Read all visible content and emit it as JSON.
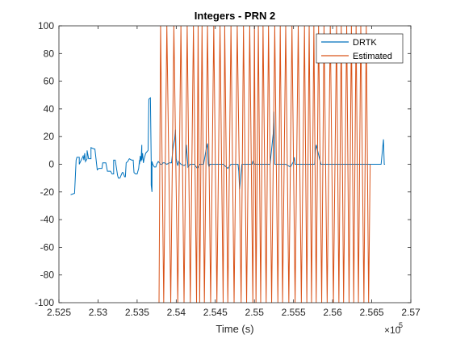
{
  "chart_data": {
    "type": "line",
    "title": "Integers - PRN 2",
    "xlabel": "Time (s)",
    "ylabel": "",
    "x_exponent_label": "×10",
    "x_exponent_power": "5",
    "xlim": [
      2.525,
      2.57
    ],
    "ylim": [
      -100,
      100
    ],
    "x_ticks": [
      2.525,
      2.53,
      2.535,
      2.54,
      2.545,
      2.55,
      2.555,
      2.56,
      2.565,
      2.57
    ],
    "x_tick_labels": [
      "2.525",
      "2.53",
      "2.535",
      "2.54",
      "2.545",
      "2.55",
      "2.555",
      "2.56",
      "2.565",
      "2.57"
    ],
    "y_ticks": [
      -100,
      -80,
      -60,
      -40,
      -20,
      0,
      20,
      40,
      60,
      80,
      100
    ],
    "y_tick_labels": [
      "-100",
      "-80",
      "-60",
      "-40",
      "-20",
      "0",
      "20",
      "40",
      "60",
      "80",
      "100"
    ],
    "grid": false,
    "legend_position": "top-right",
    "series": [
      {
        "name": "DRTK",
        "color": "#0072BD",
        "x": [
          2.5265,
          2.527,
          2.5272,
          2.5273,
          2.5276,
          2.5276,
          2.5281,
          2.5282,
          2.5283,
          2.5284,
          2.5286,
          2.5286,
          2.5288,
          2.5291,
          2.5291,
          2.5295,
          2.5296,
          2.5299,
          2.5301,
          2.5305,
          2.5306,
          2.531,
          2.5312,
          2.5316,
          2.5318,
          2.532,
          2.532,
          2.5322,
          2.5325,
          2.5326,
          2.5328,
          2.5331,
          2.5332,
          2.5334,
          2.5335,
          2.5336,
          2.5338,
          2.534,
          2.5343,
          2.5345,
          2.5346,
          2.5348,
          2.535,
          2.5351,
          2.5352,
          2.5353,
          2.5353,
          2.5354,
          2.5355,
          2.5356,
          2.5356,
          2.5357,
          2.5358,
          2.5359,
          2.5361,
          2.5364,
          2.5365,
          2.5367,
          2.5368,
          2.5368,
          2.5369,
          2.5369,
          2.537,
          2.5372,
          2.5374,
          2.5375,
          2.5377,
          2.538,
          2.5382,
          2.5383,
          2.5385,
          2.5388,
          2.5391,
          2.5394,
          2.5396,
          2.5398,
          2.5399,
          2.54,
          2.5401,
          2.5402,
          2.5403,
          2.5406,
          2.541,
          2.5412,
          2.5413,
          2.5415,
          2.5418,
          2.542,
          2.5423,
          2.5427,
          2.543,
          2.5432,
          2.5435,
          2.5438,
          2.544,
          2.5441,
          2.5442,
          2.5443,
          2.5445,
          2.5448,
          2.545,
          2.5454,
          2.5456,
          2.546,
          2.5466,
          2.547,
          2.5475,
          2.5479,
          2.548,
          2.5481,
          2.5484,
          2.549,
          2.5496,
          2.5497,
          2.5498,
          2.55,
          2.5505,
          2.551,
          2.5516,
          2.552,
          2.5524,
          2.5525,
          2.5526,
          2.5527,
          2.553,
          2.5536,
          2.554,
          2.5546,
          2.555,
          2.5551,
          2.5552,
          2.5558,
          2.5563,
          2.557,
          2.5577,
          2.5578,
          2.5579,
          2.5585,
          2.5592,
          2.56,
          2.5605,
          2.5611,
          2.5618,
          2.5623,
          2.563,
          2.5638,
          2.5646,
          2.5647,
          2.5648,
          2.5649,
          2.5656,
          2.5662,
          2.5665,
          2.5666,
          2.5666,
          2.5667
        ],
        "y": [
          -22,
          -21,
          3,
          5,
          5,
          0,
          6,
          3,
          8,
          2,
          4,
          10,
          4,
          4,
          12,
          11,
          11,
          -4,
          -3,
          -3,
          1,
          1,
          -5,
          -5,
          -7,
          -7,
          3,
          3,
          -8,
          -10,
          -10,
          -6,
          -6,
          -9,
          -9,
          1,
          2,
          4,
          3,
          3,
          -6,
          -7,
          -7,
          -5,
          -3,
          3,
          0,
          6,
          2,
          14,
          3,
          8,
          1,
          4,
          8,
          10,
          47,
          48,
          2,
          -15,
          -20,
          2,
          0,
          -2,
          -2,
          0,
          2,
          0,
          0,
          1,
          1,
          0,
          1,
          1,
          12,
          18,
          25,
          4,
          1,
          -1,
          2,
          0,
          -1,
          0,
          14,
          -2,
          0,
          0,
          0,
          -3,
          0,
          0,
          0,
          10,
          15,
          0,
          -2,
          0,
          0,
          0,
          0,
          0,
          0,
          0,
          -3,
          0,
          0,
          0,
          -5,
          -18,
          0,
          0,
          0,
          0,
          2,
          0,
          0,
          0,
          0,
          0,
          22,
          38,
          0,
          0,
          0,
          0,
          0,
          -2,
          2,
          5,
          0,
          0,
          0,
          0,
          0,
          10,
          14,
          0,
          0,
          0,
          0,
          0,
          0,
          0,
          0,
          0,
          0,
          0,
          0,
          0,
          0,
          0,
          18,
          0,
          0,
          0
        ]
      },
      {
        "name": "Estimated",
        "color": "#D95319",
        "x": [
          2.5378,
          2.538,
          2.5384,
          2.5388,
          2.5393,
          2.5397,
          2.5402,
          2.5406,
          2.541,
          2.5414,
          2.5418,
          2.5422,
          2.5426,
          2.5428,
          2.543,
          2.5433,
          2.5436,
          2.544,
          2.5444,
          2.5448,
          2.5452,
          2.5456,
          2.546,
          2.5462,
          2.5466,
          2.547,
          2.5474,
          2.5478,
          2.5483,
          2.5486,
          2.549,
          2.5494,
          2.5498,
          2.55,
          2.5502,
          2.5505,
          2.5508,
          2.5511,
          2.5515,
          2.5518,
          2.5522,
          2.5526,
          2.553,
          2.5533,
          2.5536,
          2.554,
          2.5544,
          2.5548,
          2.5552,
          2.5556,
          2.556,
          2.5564,
          2.5567,
          2.557,
          2.5573,
          2.5576,
          2.5579,
          2.5582,
          2.5586,
          2.5589,
          2.5593,
          2.5597,
          2.5601,
          2.5605,
          2.5608,
          2.5611,
          2.5614,
          2.5618,
          2.5621,
          2.5624,
          2.5627,
          2.563,
          2.5633,
          2.5636,
          2.564,
          2.5643,
          2.5646,
          2.5648
        ],
        "y": [
          -100,
          100,
          -100,
          100,
          -100,
          100,
          -100,
          100,
          -100,
          100,
          -100,
          100,
          -100,
          100,
          -100,
          100,
          -100,
          100,
          -100,
          100,
          -100,
          100,
          -100,
          100,
          -100,
          100,
          -100,
          100,
          -100,
          100,
          -100,
          100,
          -100,
          100,
          -100,
          100,
          -100,
          100,
          -100,
          100,
          -100,
          100,
          -100,
          100,
          -100,
          100,
          -100,
          100,
          -100,
          100,
          -100,
          100,
          -100,
          100,
          -100,
          100,
          -100,
          100,
          -100,
          100,
          -100,
          100,
          -100,
          100,
          -100,
          100,
          -100,
          100,
          -100,
          100,
          -100,
          100,
          -100,
          100,
          -100,
          100,
          -100,
          0
        ]
      }
    ]
  }
}
